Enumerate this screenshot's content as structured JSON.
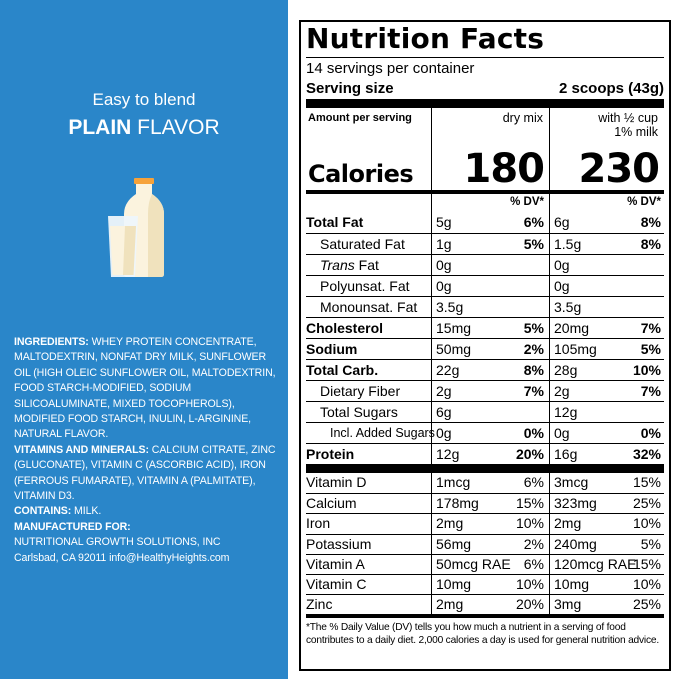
{
  "left_panel": {
    "tagline": "Easy to blend",
    "flavor_bold": "PLAIN",
    "flavor_rest": " FLAVOR",
    "ingredients_label": "INGREDIENTS:",
    "ingredients_text": " WHEY PROTEIN CONCENTRATE, MALTODEXTRIN, NONFAT DRY MILK, SUNFLOWER OIL (HIGH OLEIC SUNFLOWER OIL, MALTODEXTRIN, FOOD STARCH-MODIFIED, SODIUM SILICOALUMINATE, MIXED TOCOPHEROLS), MODIFIED FOOD STARCH, INULIN, L-ARGININE, NATURAL FLAVOR.",
    "vitamins_label": "VITAMINS AND MINERALS:",
    "vitamins_text": " CALCIUM CITRATE, ZINC (GLUCONATE), VITAMIN C (ASCORBIC ACID), IRON (FERROUS FUMARATE), VITAMIN A (PALMITATE), VITAMIN D3.",
    "contains_label": "CONTAINS:",
    "contains_text": " MILK.",
    "manufactured_label": "MANUFACTURED FOR:",
    "manufacturer": "NUTRITIONAL GROWTH SOLUTIONS, INC",
    "address": "Carlsbad, CA 92011 info@HealthyHeights.com",
    "colors": {
      "background": "#2a86c9",
      "text": "#ffffff"
    },
    "icon": "milk-bottle-and-glass-icon"
  },
  "nutrition": {
    "title": "Nutrition Facts",
    "servings": "14 servings per container",
    "serving_size_label": "Serving size",
    "serving_size_value": "2 scoops (43g)",
    "amount_per_serving": "Amount per serving",
    "calories_label": "Calories",
    "col1_header": "dry mix",
    "col2_header_line1": "with ½ cup",
    "col2_header_line2": "1% milk",
    "calories_col1": "180",
    "calories_col2": "230",
    "dv_header": "% DV*",
    "nutrients": [
      {
        "name": "Total Fat",
        "amt1": "5g",
        "dv1": "6%",
        "amt2": "6g",
        "dv2": "8%",
        "style": "bold"
      },
      {
        "name": "Saturated Fat",
        "amt1": "1g",
        "dv1": "5%",
        "amt2": "1.5g",
        "dv2": "8%",
        "style": "sub"
      },
      {
        "name_italic": "Trans",
        "name": " Fat",
        "amt1": "0g",
        "dv1": "",
        "amt2": "0g",
        "dv2": "",
        "style": "sub"
      },
      {
        "name": "Polyunsat. Fat",
        "amt1": "0g",
        "dv1": "",
        "amt2": "0g",
        "dv2": "",
        "style": "sub"
      },
      {
        "name": "Monounsat. Fat",
        "amt1": "3.5g",
        "dv1": "",
        "amt2": "3.5g",
        "dv2": "",
        "style": "sub"
      },
      {
        "name": "Cholesterol",
        "amt1": "15mg",
        "dv1": "5%",
        "amt2": "20mg",
        "dv2": "7%",
        "style": "bold"
      },
      {
        "name": "Sodium",
        "amt1": "50mg",
        "dv1": "2%",
        "amt2": "105mg",
        "dv2": "5%",
        "style": "bold"
      },
      {
        "name": "Total Carb.",
        "amt1": "22g",
        "dv1": "8%",
        "amt2": "28g",
        "dv2": "10%",
        "style": "bold"
      },
      {
        "name": "Dietary Fiber",
        "amt1": "2g",
        "dv1": "7%",
        "amt2": "2g",
        "dv2": "7%",
        "style": "sub"
      },
      {
        "name": "Total Sugars",
        "amt1": "6g",
        "dv1": "",
        "amt2": "12g",
        "dv2": "",
        "style": "sub"
      },
      {
        "name": "Incl. Added Sugars",
        "amt1": "0g",
        "dv1": "0%",
        "amt2": "0g",
        "dv2": "0%",
        "style": "subsub"
      },
      {
        "name": "Protein",
        "amt1": "12g",
        "dv1": "20%",
        "amt2": "16g",
        "dv2": "32%",
        "style": "bold"
      }
    ],
    "vitamins": [
      {
        "name": "Vitamin D",
        "amt1": "1mcg",
        "dv1": "6%",
        "amt2": "3mcg",
        "dv2": "15%"
      },
      {
        "name": "Calcium",
        "amt1": "178mg",
        "dv1": "15%",
        "amt2": "323mg",
        "dv2": "25%"
      },
      {
        "name": "Iron",
        "amt1": "2mg",
        "dv1": "10%",
        "amt2": "2mg",
        "dv2": "10%"
      },
      {
        "name": "Potassium",
        "amt1": "56mg",
        "dv1": "2%",
        "amt2": "240mg",
        "dv2": "5%"
      },
      {
        "name": "Vitamin A",
        "amt1": "50mcg RAE",
        "dv1": "6%",
        "amt2": "120mcg RAE",
        "dv2": "15%"
      },
      {
        "name": "Vitamin C",
        "amt1": "10mg",
        "dv1": "10%",
        "amt2": "10mg",
        "dv2": "10%"
      },
      {
        "name": "Zinc",
        "amt1": "2mg",
        "dv1": "20%",
        "amt2": "3mg",
        "dv2": "25%"
      }
    ],
    "footnote": "*The % Daily Value (DV) tells you how much a nutrient in a serving of food contributes to a daily diet. 2,000 calories a day is used for general nutrition advice."
  }
}
